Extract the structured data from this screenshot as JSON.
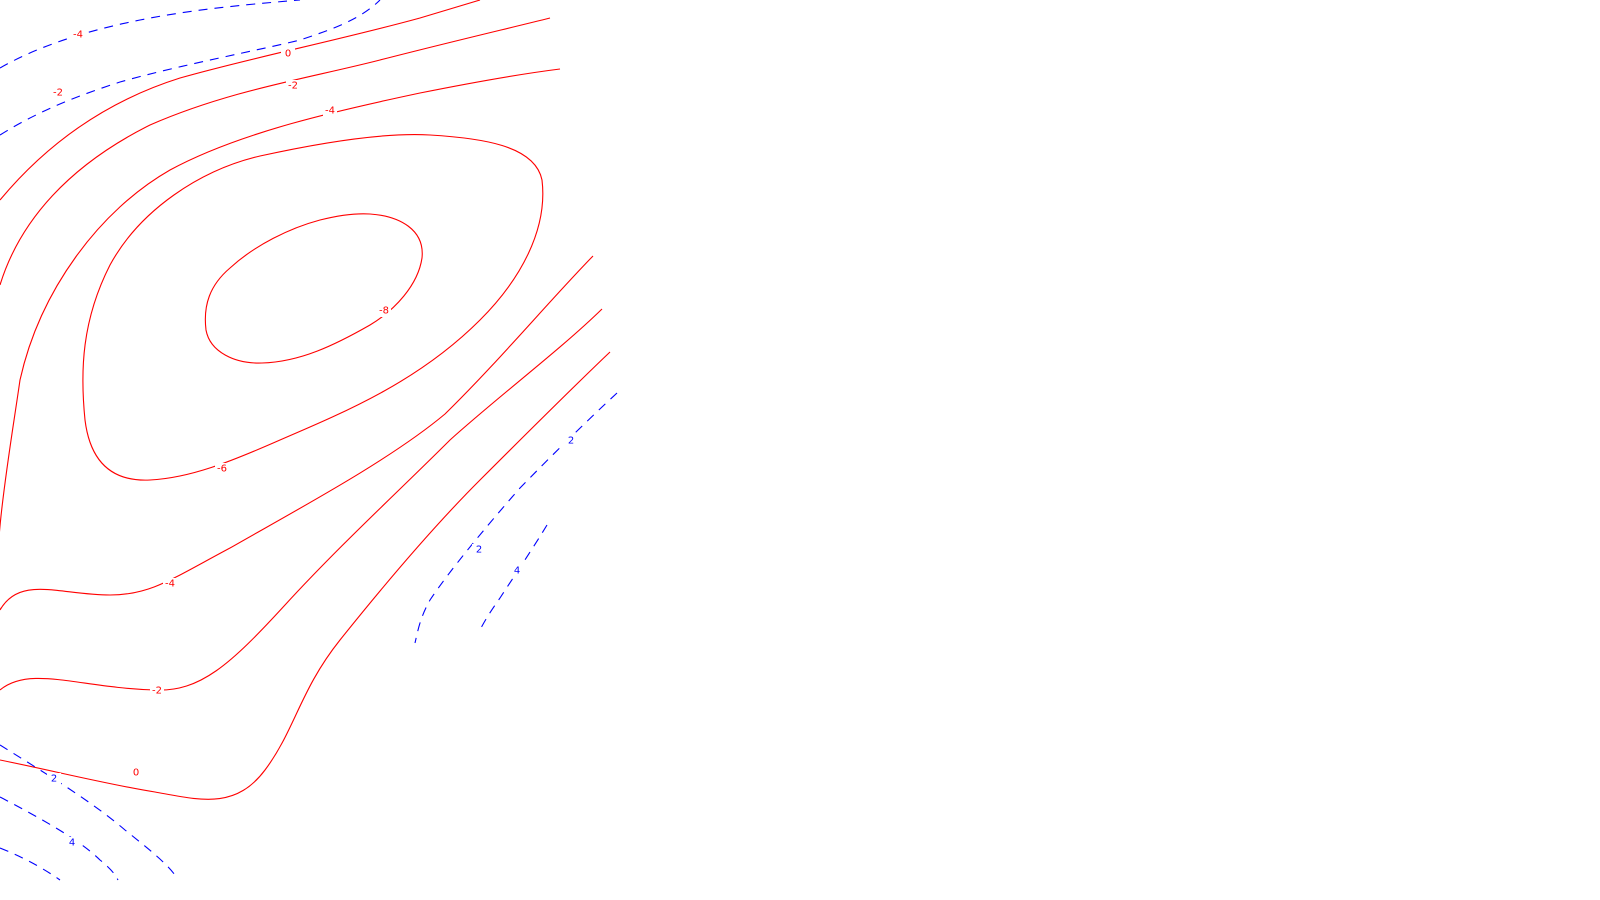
{
  "chart_data": {
    "type": "contour",
    "title": "",
    "xlabel": "",
    "ylabel": "",
    "grid": false,
    "legend": "none",
    "colors": {
      "negative": "#ff0000",
      "positive": "#0000ff"
    },
    "line_styles": {
      "negative": "solid",
      "positive": "dashed"
    },
    "levels": [
      -8,
      -6,
      -4,
      -2,
      0,
      2,
      4
    ],
    "labels": [
      {
        "text": "-4",
        "level": -4
      },
      {
        "text": "-2",
        "level": -2
      },
      {
        "text": "0",
        "level": 0
      },
      {
        "text": "-2",
        "level": -2
      },
      {
        "text": "-4",
        "level": -4
      },
      {
        "text": "-8",
        "level": -8
      },
      {
        "text": "-6",
        "level": -6
      },
      {
        "text": "-4",
        "level": -4
      },
      {
        "text": "-2",
        "level": -2
      },
      {
        "text": "0",
        "level": 0
      },
      {
        "text": "2",
        "level": 2
      },
      {
        "text": "2",
        "level": 2
      },
      {
        "text": "4",
        "level": 4
      },
      {
        "text": "2",
        "level": 2
      },
      {
        "text": "4",
        "level": 4
      }
    ]
  }
}
